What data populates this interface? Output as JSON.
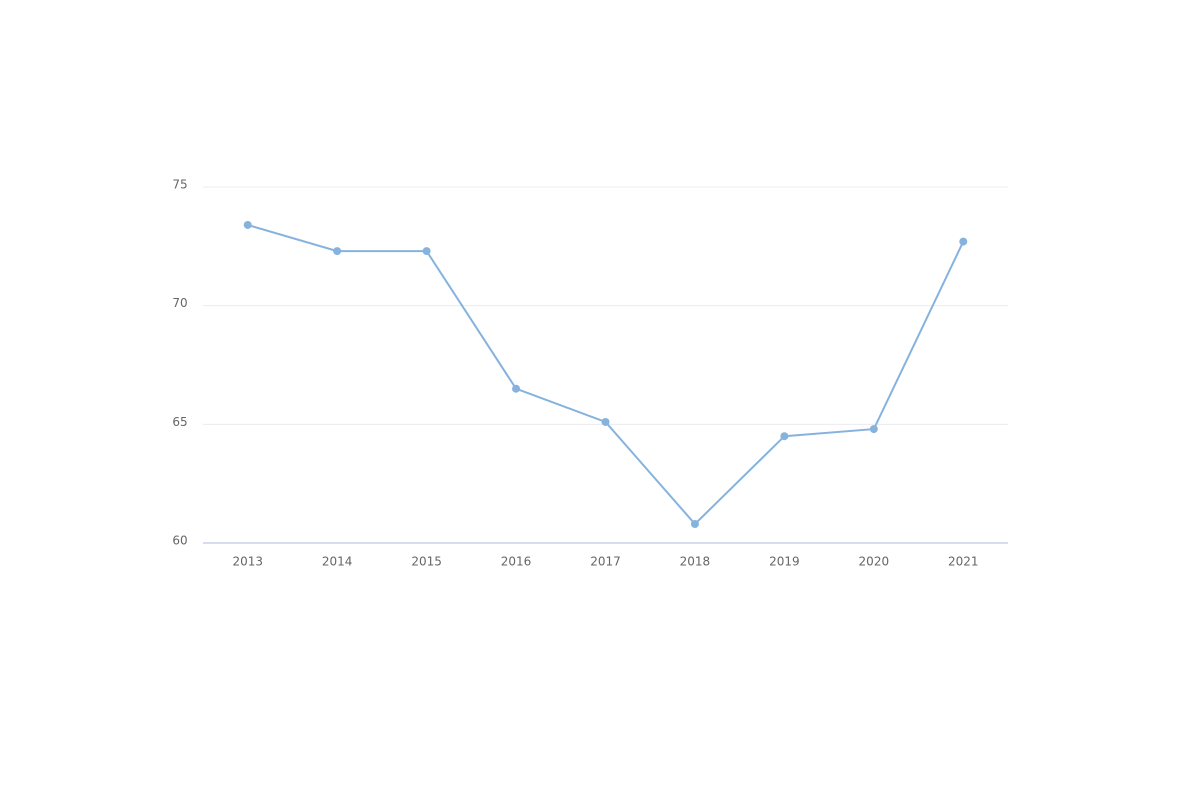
{
  "chart_data": {
    "type": "line",
    "categories": [
      "2013",
      "2014",
      "2015",
      "2016",
      "2017",
      "2018",
      "2019",
      "2020",
      "2021"
    ],
    "values": [
      73.4,
      72.3,
      72.3,
      66.5,
      65.1,
      60.8,
      64.5,
      64.8,
      72.7
    ],
    "color": "#86b3de",
    "ylim": [
      60,
      75
    ],
    "yticks": [
      60,
      65,
      70,
      75
    ],
    "grid": true
  }
}
